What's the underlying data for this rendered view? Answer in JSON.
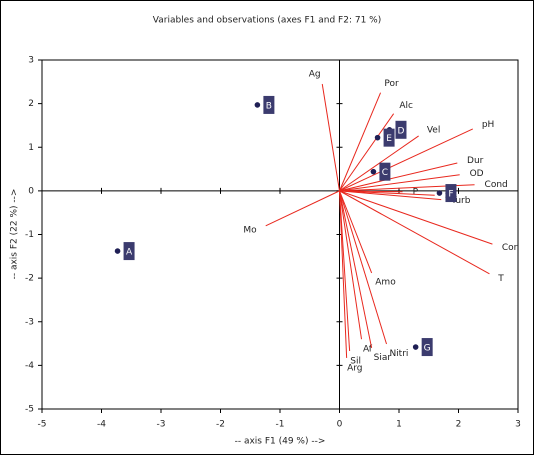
{
  "chart_data": {
    "type": "biplot",
    "title": "Variables and observations (axes F1 and F2: 71 %)",
    "x_label": "-- axis F1 (49 %) -->",
    "y_label": "-- axis F2 (22 %) -->",
    "xlim": [
      -5,
      3
    ],
    "ylim": [
      -5,
      3
    ],
    "xticks": [
      -5,
      -4,
      -3,
      -2,
      -1,
      0,
      1,
      2,
      3
    ],
    "yticks": [
      -5,
      -4,
      -3,
      -2,
      -1,
      0,
      1,
      2,
      3
    ],
    "observations": {
      "color": "#1f1f55",
      "label_color": "#3b3b6e",
      "labels": [
        "A",
        "B",
        "C",
        "D",
        "E",
        "F",
        "G"
      ],
      "x": [
        -3.73,
        -1.38,
        0.57,
        0.84,
        0.64,
        1.68,
        1.28
      ],
      "y": [
        -1.38,
        1.97,
        0.44,
        1.4,
        1.22,
        -0.05,
        -3.58
      ]
    },
    "variables": {
      "color": "#e8281e",
      "labels": [
        "Ag",
        "Por",
        "Alc",
        "Vel",
        "pH",
        "Dur",
        "OD",
        "Cond",
        "P",
        "St",
        "Turb",
        "Cor",
        "T",
        "Amo",
        "Mo",
        "Af",
        "Sil",
        "Siar",
        "Nitri",
        "Arg"
      ],
      "x": [
        -0.29,
        0.69,
        0.91,
        1.33,
        2.24,
        1.98,
        2.02,
        2.27,
        1.06,
        1.6,
        1.71,
        2.57,
        2.52,
        0.54,
        -1.24,
        0.37,
        0.17,
        0.54,
        0.79,
        0.12
      ],
      "y": [
        2.45,
        2.25,
        1.77,
        1.26,
        1.42,
        0.64,
        0.37,
        0.14,
        -0.02,
        -0.1,
        -0.2,
        -1.22,
        -1.9,
        -1.88,
        -0.8,
        -3.4,
        -3.67,
        -3.6,
        -3.51,
        -3.83
      ]
    }
  }
}
